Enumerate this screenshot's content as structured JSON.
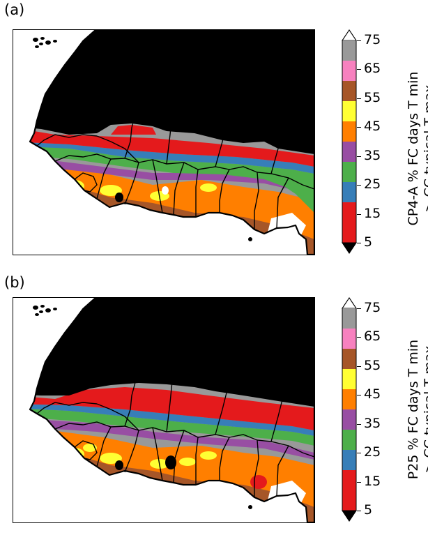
{
  "panels": [
    {
      "label": "(a)",
      "colorbar_title_line1": "CP4-A % FC days T min",
      "colorbar_title_line2": "> CC typical T max"
    },
    {
      "label": "(b)",
      "colorbar_title_line1": "P25 % FC days T min",
      "colorbar_title_line2": "> CC typical T max"
    }
  ],
  "colorbar": {
    "ticks": [
      "5",
      "15",
      "25",
      "35",
      "45",
      "55",
      "65",
      "75"
    ],
    "bins": [
      {
        "range": "5-10",
        "color": "#e41a1c"
      },
      {
        "range": "10-20",
        "color": "#e41a1c"
      },
      {
        "range": "15-20",
        "color": "#377eb8"
      },
      {
        "range": "20-30",
        "color": "#4daf4a"
      },
      {
        "range": "30-35",
        "color": "#984ea3"
      },
      {
        "range": "35-45",
        "color": "#ff7f00"
      },
      {
        "range": "45-50",
        "color": "#ffff33"
      },
      {
        "range": "50-60",
        "color": "#a65628"
      },
      {
        "range": "60-65",
        "color": "#f781bf"
      },
      {
        "range": "65-75",
        "color": "#999999"
      }
    ],
    "under_color": "#000000",
    "over_color": "#ffffff",
    "extend": "both"
  },
  "map_colors": {
    "sahara": "#000000",
    "land_low": "#e41a1c",
    "blue": "#377eb8",
    "green": "#4daf4a",
    "purple": "#984ea3",
    "orange": "#ff7f00",
    "yellow": "#ffff33",
    "brown": "#a65628",
    "pink": "#f781bf",
    "grey": "#999999",
    "ocean": "#ffffff",
    "borders": "#000000"
  }
}
